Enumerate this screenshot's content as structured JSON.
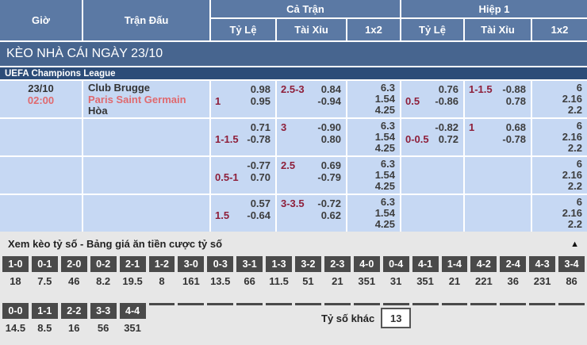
{
  "columns": {
    "time": "Giờ",
    "match": "Trận Đấu",
    "full": "Cả Trận",
    "half": "Hiệp 1",
    "hdp": "Tỷ Lệ",
    "ou": "Tài Xỉu",
    "x12": "1x2"
  },
  "title_bar": "KÈO NHÀ CÁI NGÀY 23/10",
  "league": "UEFA Champions League",
  "match": {
    "date": "23/10",
    "time": "02:00",
    "home": "Club Brugge",
    "away": "Paris Saint Germain",
    "draw": "Hòa"
  },
  "odds_rows": [
    {
      "ft_hdp": {
        "hcap": "1",
        "v1": "0.98",
        "v2": "0.95"
      },
      "ft_ou": {
        "hcap": "2.5-3",
        "v1": "0.84",
        "v2": "-0.94"
      },
      "ft_1x2": [
        "6.3",
        "1.54",
        "4.25"
      ],
      "h1_hdp": {
        "hcap": "0.5",
        "v1": "0.76",
        "v2": "-0.86"
      },
      "h1_ou": {
        "hcap": "1-1.5",
        "v1": "-0.88",
        "v2": "0.78"
      },
      "h1_1x2": [
        "6",
        "2.16",
        "2.2"
      ]
    },
    {
      "ft_hdp": {
        "hcap": "1-1.5",
        "v1": "0.71",
        "v2": "-0.78"
      },
      "ft_ou": {
        "hcap": "3",
        "v1": "-0.90",
        "v2": "0.80"
      },
      "ft_1x2": [
        "6.3",
        "1.54",
        "4.25"
      ],
      "h1_hdp": {
        "hcap": "0-0.5",
        "v1": "-0.82",
        "v2": "0.72"
      },
      "h1_ou": {
        "hcap": "1",
        "v1": "0.68",
        "v2": "-0.78"
      },
      "h1_1x2": [
        "6",
        "2.16",
        "2.2"
      ]
    },
    {
      "ft_hdp": {
        "hcap": "0.5-1",
        "v1": "-0.77",
        "v2": "0.70"
      },
      "ft_ou": {
        "hcap": "2.5",
        "v1": "0.69",
        "v2": "-0.79"
      },
      "ft_1x2": [
        "6.3",
        "1.54",
        "4.25"
      ],
      "h1_hdp": null,
      "h1_ou": null,
      "h1_1x2": [
        "6",
        "2.16",
        "2.2"
      ]
    },
    {
      "ft_hdp": {
        "hcap": "1.5",
        "v1": "0.57",
        "v2": "-0.64"
      },
      "ft_ou": {
        "hcap": "3-3.5",
        "v1": "-0.72",
        "v2": "0.62"
      },
      "ft_1x2": [
        "6.3",
        "1.54",
        "4.25"
      ],
      "h1_hdp": null,
      "h1_ou": null,
      "h1_1x2": [
        "6",
        "2.16",
        "2.2"
      ]
    }
  ],
  "score_section": {
    "header": "Xem kèo tỷ số - Bảng giá ăn tiền cược tỷ số",
    "collapse_icon": "▲",
    "row1": [
      {
        "score": "1-0",
        "odds": "18"
      },
      {
        "score": "0-1",
        "odds": "7.5"
      },
      {
        "score": "2-0",
        "odds": "46"
      },
      {
        "score": "0-2",
        "odds": "8.2"
      },
      {
        "score": "2-1",
        "odds": "19.5"
      },
      {
        "score": "1-2",
        "odds": "8"
      },
      {
        "score": "3-0",
        "odds": "161"
      },
      {
        "score": "0-3",
        "odds": "13.5"
      },
      {
        "score": "3-1",
        "odds": "66"
      },
      {
        "score": "1-3",
        "odds": "11.5"
      },
      {
        "score": "3-2",
        "odds": "51"
      },
      {
        "score": "2-3",
        "odds": "21"
      },
      {
        "score": "4-0",
        "odds": "351"
      },
      {
        "score": "0-4",
        "odds": "31"
      },
      {
        "score": "4-1",
        "odds": "351"
      },
      {
        "score": "1-4",
        "odds": "21"
      },
      {
        "score": "4-2",
        "odds": "221"
      },
      {
        "score": "2-4",
        "odds": "36"
      },
      {
        "score": "4-3",
        "odds": "231"
      },
      {
        "score": "3-4",
        "odds": "86"
      }
    ],
    "row2": [
      {
        "score": "0-0",
        "odds": "14.5"
      },
      {
        "score": "1-1",
        "odds": "8.5"
      },
      {
        "score": "2-2",
        "odds": "16"
      },
      {
        "score": "3-3",
        "odds": "56"
      },
      {
        "score": "4-4",
        "odds": "351"
      }
    ],
    "row2_empty_slots": 15,
    "other_label": "Tỷ số khác",
    "other_value": "13"
  },
  "colors": {
    "header_blue": "#5b79a4",
    "title_blue": "#47658f",
    "league_navy": "#2c4c78",
    "row_bg": "#c6d8f3",
    "handicap_red": "#8e1f3a",
    "team_red": "#e0696e",
    "score_box_gray": "#4a4a4a",
    "section_gray": "#e7e7e7"
  }
}
